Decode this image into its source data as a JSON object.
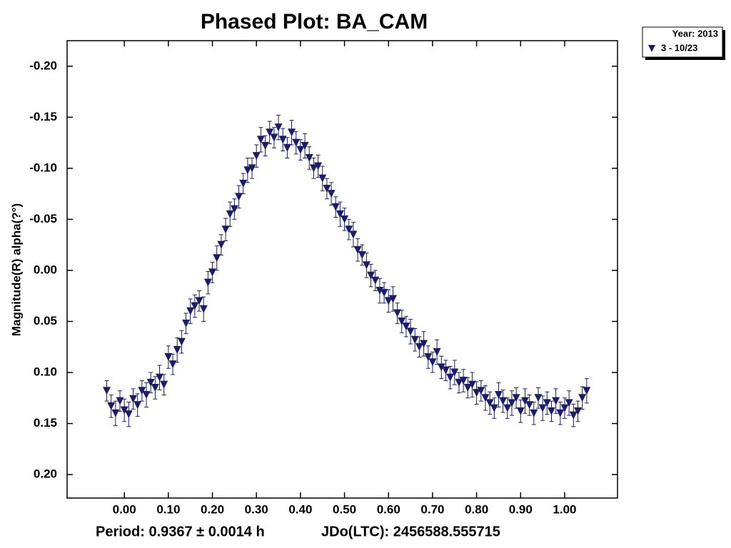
{
  "chart_data": {
    "type": "scatter",
    "title": "Phased Plot: BA_CAM",
    "ylabel": "Magnitude(R) alpha(?°)",
    "footer": [
      "Period: 0.9367 ± 0.0014 h",
      "JDo(LTC): 2456588.555715"
    ],
    "legend_title": "Year: 2013",
    "legend_position": "outside-top-right",
    "grid": false,
    "y_inverted": true,
    "xlim": [
      -0.13,
      1.12
    ],
    "ylim": [
      -0.225,
      0.223
    ],
    "xticks": [
      {
        "value": 0,
        "label": "0.00"
      },
      {
        "value": 0.1,
        "label": "0.10"
      },
      {
        "value": 0.2,
        "label": "0.20"
      },
      {
        "value": 0.3,
        "label": "0.30"
      },
      {
        "value": 0.4,
        "label": "0.40"
      },
      {
        "value": 0.5,
        "label": "0.50"
      },
      {
        "value": 0.6,
        "label": "0.60"
      },
      {
        "value": 0.7,
        "label": "0.70"
      },
      {
        "value": 0.8,
        "label": "0.80"
      },
      {
        "value": 0.9,
        "label": "0.90"
      },
      {
        "value": 1,
        "label": "1.00"
      }
    ],
    "yticks": [
      {
        "value": -0.2,
        "label": "-0.20"
      },
      {
        "value": -0.15,
        "label": "-0.15"
      },
      {
        "value": -0.1,
        "label": "-0.10"
      },
      {
        "value": -0.05,
        "label": "-0.05"
      },
      {
        "value": 0,
        "label": "0.00"
      },
      {
        "value": 0.05,
        "label": "0.05"
      },
      {
        "value": 0.1,
        "label": "0.10"
      },
      {
        "value": 0.15,
        "label": "0.15"
      },
      {
        "value": 0.2,
        "label": "0.20"
      }
    ],
    "x": [
      -0.04,
      -0.03,
      -0.02,
      -0.01,
      0,
      0.01,
      0.02,
      0.03,
      0.04,
      0.05,
      0.06,
      0.07,
      0.08,
      0.09,
      0.1,
      0.11,
      0.12,
      0.13,
      0.14,
      0.15,
      0.16,
      0.17,
      0.18,
      0.19,
      0.2,
      0.21,
      0.22,
      0.23,
      0.24,
      0.25,
      0.26,
      0.27,
      0.28,
      0.29,
      0.3,
      0.31,
      0.32,
      0.33,
      0.34,
      0.35,
      0.36,
      0.37,
      0.38,
      0.39,
      0.4,
      0.41,
      0.42,
      0.43,
      0.44,
      0.45,
      0.46,
      0.47,
      0.48,
      0.49,
      0.5,
      0.51,
      0.52,
      0.53,
      0.54,
      0.55,
      0.56,
      0.57,
      0.58,
      0.59,
      0.6,
      0.61,
      0.62,
      0.63,
      0.64,
      0.65,
      0.66,
      0.67,
      0.68,
      0.69,
      0.7,
      0.71,
      0.72,
      0.73,
      0.74,
      0.75,
      0.76,
      0.77,
      0.78,
      0.79,
      0.8,
      0.81,
      0.82,
      0.83,
      0.84,
      0.85,
      0.86,
      0.87,
      0.88,
      0.89,
      0.9,
      0.91,
      0.92,
      0.93,
      0.94,
      0.95,
      0.96,
      0.97,
      0.98,
      0.99,
      1,
      1.01,
      1.02,
      1.03,
      1.04,
      1.05
    ],
    "series": [
      {
        "name": "3 - 10/23",
        "color": "#1c1c6b",
        "values": [
          0.118,
          0.133,
          0.14,
          0.128,
          0.137,
          0.141,
          0.126,
          0.132,
          0.118,
          0.122,
          0.11,
          0.115,
          0.105,
          0.112,
          0.085,
          0.092,
          0.078,
          0.07,
          0.052,
          0.04,
          0.035,
          0.03,
          0.038,
          0.012,
          0.002,
          -0.012,
          -0.025,
          -0.04,
          -0.055,
          -0.06,
          -0.072,
          -0.085,
          -0.098,
          -0.1,
          -0.112,
          -0.128,
          -0.122,
          -0.135,
          -0.13,
          -0.14,
          -0.128,
          -0.12,
          -0.135,
          -0.125,
          -0.118,
          -0.122,
          -0.11,
          -0.1,
          -0.102,
          -0.09,
          -0.08,
          -0.075,
          -0.062,
          -0.055,
          -0.05,
          -0.04,
          -0.035,
          -0.02,
          -0.015,
          -0.005,
          0.005,
          0.01,
          0.02,
          0.022,
          0.03,
          0.028,
          0.042,
          0.05,
          0.055,
          0.06,
          0.068,
          0.075,
          0.072,
          0.085,
          0.09,
          0.08,
          0.095,
          0.098,
          0.105,
          0.1,
          0.11,
          0.108,
          0.115,
          0.112,
          0.12,
          0.118,
          0.125,
          0.13,
          0.135,
          0.122,
          0.128,
          0.135,
          0.13,
          0.125,
          0.138,
          0.128,
          0.132,
          0.14,
          0.125,
          0.135,
          0.13,
          0.138,
          0.128,
          0.14,
          0.135,
          0.13,
          0.142,
          0.138,
          0.125,
          0.118
        ],
        "errors": [
          0.01,
          0.011,
          0.012,
          0.01,
          0.011,
          0.012,
          0.01,
          0.011,
          0.01,
          0.012,
          0.01,
          0.011,
          0.012,
          0.01,
          0.011,
          0.01,
          0.012,
          0.011,
          0.01,
          0.012,
          0.011,
          0.01,
          0.012,
          0.011,
          0.01,
          0.012,
          0.01,
          0.011,
          0.012,
          0.01,
          0.011,
          0.01,
          0.012,
          0.01,
          0.011,
          0.012,
          0.01,
          0.011,
          0.01,
          0.012,
          0.011,
          0.01,
          0.012,
          0.011,
          0.01,
          0.012,
          0.011,
          0.01,
          0.011,
          0.012,
          0.01,
          0.011,
          0.01,
          0.012,
          0.011,
          0.01,
          0.012,
          0.011,
          0.01,
          0.012,
          0.011,
          0.01,
          0.012,
          0.01,
          0.011,
          0.012,
          0.01,
          0.011,
          0.01,
          0.012,
          0.011,
          0.01,
          0.012,
          0.011,
          0.01,
          0.012,
          0.011,
          0.01,
          0.011,
          0.012,
          0.01,
          0.011,
          0.01,
          0.012,
          0.011,
          0.01,
          0.012,
          0.011,
          0.01,
          0.012,
          0.011,
          0.01,
          0.012,
          0.01,
          0.011,
          0.012,
          0.01,
          0.011,
          0.01,
          0.012,
          0.011,
          0.01,
          0.012,
          0.011,
          0.01,
          0.012,
          0.011,
          0.01,
          0.011,
          0.012
        ]
      }
    ]
  }
}
